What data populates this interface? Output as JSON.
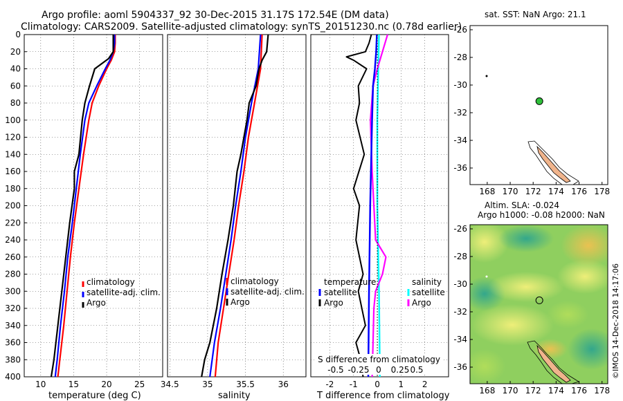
{
  "header": {
    "line1": "Argo profile: aoml 5904337_92 30-Dec-2015 31.17S 172.54E (DM data)",
    "line2": "Climatology: CARS2009. Satellite-adjusted climatology: synTS_20151230.nc (0.78d earlier)"
  },
  "colors": {
    "clim": "#ff0000",
    "sat": "#0000ff",
    "argo": "#000000",
    "sat_s": "#00ffff",
    "argo_s": "#ff00ff",
    "land": "#f0b48c"
  },
  "chart_data": [
    {
      "type": "line",
      "id": "temperature",
      "xlabel": "temperature (deg C)",
      "ylabel": "",
      "xlim": [
        7.5,
        28.5
      ],
      "ylim": [
        400,
        0
      ],
      "xticks": [
        10,
        15,
        20,
        25
      ],
      "yticks": [
        0,
        20,
        40,
        60,
        80,
        100,
        120,
        140,
        160,
        180,
        200,
        220,
        240,
        260,
        280,
        300,
        320,
        340,
        360,
        380,
        400
      ],
      "legend": [
        "climatology",
        "satellite-adj. clim.",
        "Argo"
      ],
      "series": [
        {
          "name": "climatology",
          "depth": [
            0,
            10,
            20,
            30,
            40,
            60,
            80,
            100,
            140,
            180,
            220,
            260,
            300,
            340,
            380,
            400
          ],
          "values": [
            21.3,
            21.3,
            21.2,
            20.7,
            20.0,
            18.8,
            17.8,
            17.3,
            16.5,
            15.8,
            15.1,
            14.5,
            14.0,
            13.5,
            12.9,
            12.6
          ]
        },
        {
          "name": "satellite-adj. clim.",
          "depth": [
            0,
            10,
            20,
            30,
            40,
            60,
            80,
            100,
            140,
            180,
            220,
            260,
            300,
            340,
            380,
            400
          ],
          "values": [
            21.2,
            21.2,
            21.0,
            20.5,
            19.8,
            18.5,
            17.3,
            16.7,
            16.0,
            15.4,
            14.8,
            14.1,
            13.6,
            13.0,
            12.5,
            12.2
          ]
        },
        {
          "name": "Argo",
          "depth": [
            0,
            10,
            20,
            28,
            40,
            60,
            80,
            100,
            140,
            160,
            180,
            220,
            260,
            300,
            340,
            380,
            400
          ],
          "values": [
            21.0,
            21.0,
            21.0,
            20.3,
            18.2,
            17.4,
            16.7,
            16.3,
            15.8,
            15.1,
            15.1,
            14.4,
            13.8,
            13.2,
            12.6,
            12.0,
            11.6
          ]
        }
      ]
    },
    {
      "type": "line",
      "id": "salinity",
      "xlabel": "salinity",
      "ylabel": "",
      "xlim": [
        34.47,
        36.3
      ],
      "ylim": [
        400,
        0
      ],
      "xticks": [
        34.5,
        35,
        35.5,
        36
      ],
      "legend": [
        "climatology",
        "satellite-adj. clim.",
        "Argo"
      ],
      "series": [
        {
          "name": "climatology",
          "depth": [
            0,
            40,
            80,
            120,
            160,
            200,
            240,
            280,
            320,
            360,
            400
          ],
          "values": [
            35.72,
            35.7,
            35.62,
            35.54,
            35.48,
            35.41,
            35.35,
            35.28,
            35.21,
            35.14,
            35.1
          ]
        },
        {
          "name": "satellite-adj. clim.",
          "depth": [
            0,
            40,
            80,
            120,
            160,
            200,
            240,
            280,
            320,
            360,
            400
          ],
          "values": [
            35.7,
            35.67,
            35.58,
            35.5,
            35.44,
            35.37,
            35.31,
            35.24,
            35.17,
            35.09,
            35.03
          ]
        },
        {
          "name": "Argo",
          "depth": [
            0,
            20,
            30,
            40,
            60,
            80,
            100,
            120,
            140,
            160,
            200,
            240,
            280,
            320,
            360,
            380,
            400
          ],
          "values": [
            35.8,
            35.78,
            35.72,
            35.68,
            35.64,
            35.55,
            35.52,
            35.48,
            35.44,
            35.39,
            35.34,
            35.27,
            35.19,
            35.12,
            35.03,
            34.96,
            34.92
          ]
        }
      ]
    },
    {
      "type": "line",
      "id": "difference",
      "xlabel": "T difference from climatology",
      "top_label": "S difference from climatology",
      "xlim": [
        -2.8,
        3.0
      ],
      "ylim": [
        400,
        0
      ],
      "xticks": [
        -2,
        -1,
        0,
        1,
        2
      ],
      "top_ticks": [
        "-0.5",
        "-0.25",
        "0",
        "0.25",
        "0.5"
      ],
      "legend_t": [
        "temperature",
        "satellite",
        "Argo"
      ],
      "legend_s": [
        "salinity",
        "satellite",
        "Argo"
      ],
      "series": [
        {
          "name": "temperature satellite",
          "depth": [
            0,
            20,
            40,
            60,
            100,
            200,
            300,
            400
          ],
          "values": [
            -0.02,
            -0.05,
            -0.1,
            -0.18,
            -0.22,
            -0.3,
            -0.35,
            -0.38
          ]
        },
        {
          "name": "temperature Argo",
          "depth": [
            0,
            10,
            20,
            26,
            30,
            40,
            60,
            80,
            100,
            140,
            180,
            200,
            240,
            280,
            300,
            340,
            360,
            380,
            400
          ],
          "values": [
            -0.25,
            -0.35,
            -0.5,
            -1.3,
            -1.0,
            -0.45,
            -0.8,
            -0.75,
            -0.9,
            -0.55,
            -1.0,
            -0.75,
            -0.9,
            -0.6,
            -0.8,
            -0.5,
            -0.9,
            -0.7,
            -0.6
          ]
        },
        {
          "name": "salinity satellite",
          "depth": [
            0,
            100,
            200,
            300,
            400
          ],
          "values": [
            0.02,
            0.0,
            0.0,
            0.02,
            0.03
          ]
        },
        {
          "name": "salinity Argo",
          "depth": [
            0,
            20,
            40,
            60,
            100,
            160,
            200,
            240,
            260,
            280,
            300,
            320,
            360,
            400
          ],
          "values": [
            0.12,
            0.06,
            0.0,
            -0.05,
            -0.08,
            -0.06,
            -0.04,
            -0.02,
            0.1,
            0.06,
            -0.02,
            -0.04,
            -0.05,
            -0.06
          ]
        }
      ]
    },
    {
      "type": "scatter",
      "id": "sst-map",
      "title": "sat. SST: NaN Argo: 21.1",
      "xlim": [
        166.5,
        178.5
      ],
      "ylim": [
        -37.2,
        -25.7
      ],
      "xticks": [
        168,
        170,
        172,
        174,
        176,
        178
      ],
      "yticks": [
        -26,
        -28,
        -30,
        -32,
        -34,
        -36
      ],
      "points": [
        {
          "lon": 172.54,
          "lat": -31.17,
          "label": "Argo float"
        }
      ]
    },
    {
      "type": "heatmap",
      "id": "sla-map",
      "title1": "Altim. SLA: -0.024",
      "title2": "Argo h1000: -0.08 h2000: NaN",
      "xlim": [
        166.5,
        178.5
      ],
      "ylim": [
        -37.2,
        -25.7
      ],
      "xticks": [
        168,
        170,
        172,
        174,
        176,
        178
      ],
      "yticks": [
        -26,
        -28,
        -30,
        -32,
        -34,
        -36
      ],
      "points": [
        {
          "lon": 172.54,
          "lat": -31.17,
          "label": "Argo float"
        }
      ]
    }
  ],
  "credit": "©IMOS 14-Dec-2018 14:17:06"
}
